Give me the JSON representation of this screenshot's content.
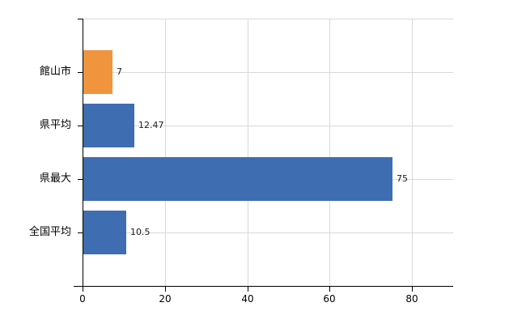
{
  "chart_data": {
    "type": "bar",
    "orientation": "horizontal",
    "title": "",
    "xlabel": "",
    "ylabel": "",
    "categories": [
      "館山市",
      "県平均",
      "県最大",
      "全国平均"
    ],
    "values": [
      7,
      12.47,
      75,
      10.5
    ],
    "value_labels": [
      "7",
      "12.47",
      "75",
      "10.5"
    ],
    "bar_colors": [
      "#f0943e",
      "#3e6db2",
      "#3e6db2",
      "#3e6db2"
    ],
    "x_ticks": [
      0,
      20,
      40,
      60,
      80
    ],
    "x_tick_labels": [
      "0",
      "20",
      "40",
      "60",
      "80"
    ],
    "xlim": [
      0,
      90
    ],
    "grid": true,
    "legend_position": "none",
    "background_color": "#ffffff",
    "gridline_color": "#d9d9d9",
    "axis_color": "#000000",
    "text_color": "#000000",
    "value_label_color": "#1a1a1a"
  }
}
